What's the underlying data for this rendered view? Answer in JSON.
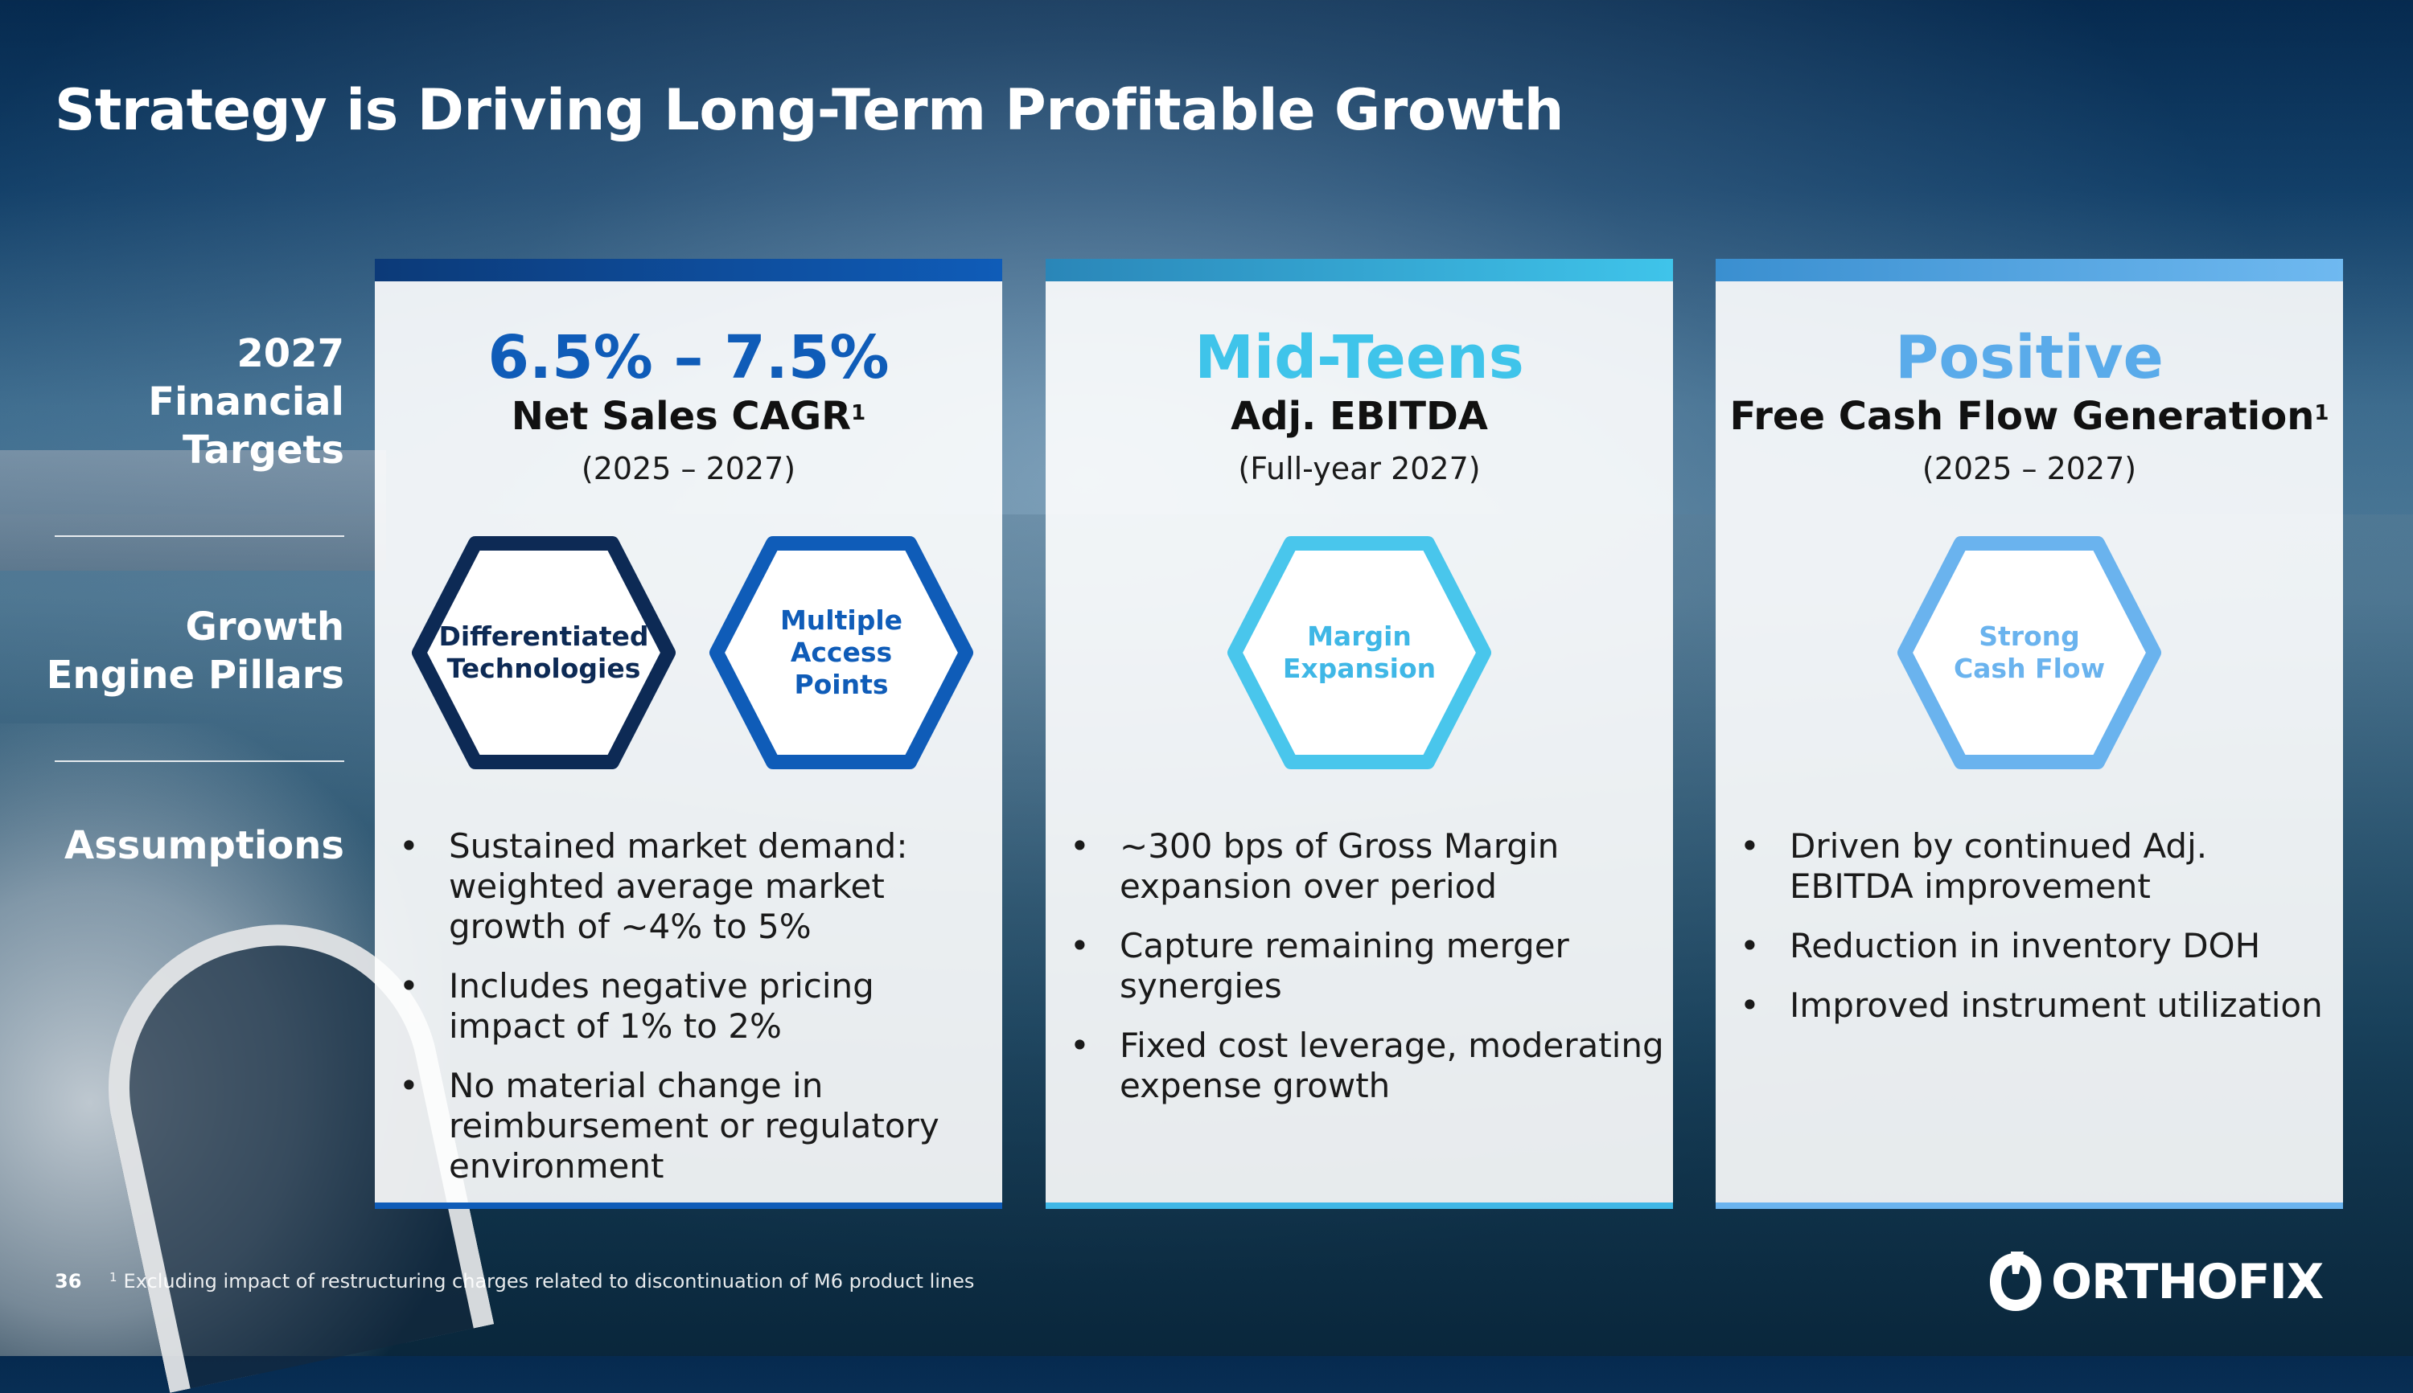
{
  "title": "Strategy is Driving Long-Term Profitable Growth",
  "row_labels": {
    "targets": [
      "2027",
      "Financial",
      "Targets"
    ],
    "pillars": [
      "Growth",
      "Engine Pillars"
    ],
    "assumptions": [
      "Assumptions"
    ]
  },
  "cards": [
    {
      "headline": "6.5% – 7.5%",
      "metric": "Net Sales CAGR",
      "footnote_marker": "1",
      "period": "(2025 – 2027)",
      "pillars": [
        {
          "label": "Differentiated Technologies"
        },
        {
          "label": "Multiple Access Points"
        }
      ],
      "assumptions": [
        "Sustained market demand: weighted average market growth of ~4% to 5%",
        "Includes negative pricing impact of 1% to 2%",
        "No material change in reimbursement or regulatory environment"
      ]
    },
    {
      "headline": "Mid-Teens",
      "metric": "Adj. EBITDA",
      "footnote_marker": "",
      "period": "(Full-year 2027)",
      "pillars": [
        {
          "label": "Margin Expansion"
        }
      ],
      "assumptions": [
        "~300 bps of Gross Margin expansion over period",
        "Capture remaining merger synergies",
        "Fixed cost leverage, moderating expense growth"
      ]
    },
    {
      "headline": "Positive",
      "metric": "Free Cash Flow Generation",
      "footnote_marker": "1",
      "period": "(2025 – 2027)",
      "pillars": [
        {
          "label": "Strong Cash Flow"
        }
      ],
      "assumptions": [
        "Driven by continued Adj. EBITDA improvement",
        "Reduction in inventory DOH",
        "Improved instrument utilization"
      ]
    }
  ],
  "bullet_char": "•",
  "footer": {
    "page_number": "36",
    "footnote_marker": "1",
    "footnote": "Excluding impact of restructuring charges related to discontinuation of M6 product lines"
  },
  "logo": {
    "text": "ORTHOFIX",
    "icon": "orthofix-logo-mark"
  },
  "colors": {
    "navy": "#0d2a55",
    "blue": "#0f5cb8",
    "cyan": "#3fc4ea",
    "sky": "#5aabea"
  }
}
